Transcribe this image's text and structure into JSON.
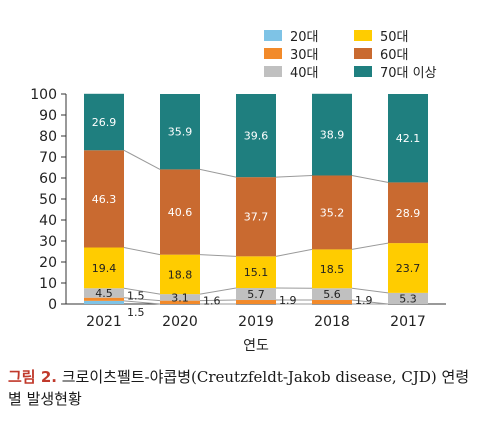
{
  "chart_data": {
    "type": "bar",
    "stacked": true,
    "categories": [
      "2021",
      "2020",
      "2019",
      "2018",
      "2017"
    ],
    "xlabel": "연도",
    "ylabel": "",
    "ylim": [
      0,
      100
    ],
    "yticks": [
      0,
      10,
      20,
      30,
      40,
      50,
      60,
      70,
      80,
      90,
      100
    ],
    "grid": false,
    "legend_position": "top-right",
    "series": [
      {
        "name": "20대",
        "color": "#7ec3e6",
        "values": [
          1.5,
          0,
          0,
          0,
          0
        ]
      },
      {
        "name": "30대",
        "color": "#f28a2a",
        "values": [
          1.5,
          1.6,
          1.9,
          1.9,
          0
        ]
      },
      {
        "name": "40대",
        "color": "#c0c0c0",
        "values": [
          4.5,
          3.1,
          5.7,
          5.6,
          5.3
        ]
      },
      {
        "name": "50대",
        "color": "#ffcc00",
        "values": [
          19.4,
          18.8,
          15.1,
          18.5,
          23.7
        ]
      },
      {
        "name": "60대",
        "color": "#c96a30",
        "values": [
          46.3,
          40.6,
          37.7,
          35.2,
          28.9
        ]
      },
      {
        "name": "70대 이상",
        "color": "#1f7f7f",
        "values": [
          26.9,
          35.9,
          39.6,
          38.9,
          42.1
        ]
      }
    ],
    "data_labels": {
      "20대": [
        "1.5",
        "",
        "",
        "",
        ""
      ],
      "30대": [
        "1.5",
        "1.6",
        "1.9",
        "1.9",
        ""
      ],
      "40대": [
        "4.5",
        "3.1",
        "5.7",
        "5.6",
        "5.3"
      ],
      "50대": [
        "19.4",
        "18.8",
        "15.1",
        "18.5",
        "23.7"
      ],
      "60대": [
        "46.3",
        "40.6",
        "37.7",
        "35.2",
        "28.9"
      ],
      "70대 이상": [
        "26.9",
        "35.9",
        "39.6",
        "38.9",
        "42.1"
      ]
    }
  },
  "caption": {
    "figure_label": "그림 2.",
    "text": "크로이츠펠트-야콥병(Creutzfeldt-Jakob disease, CJD) 연령별 발생현황"
  }
}
